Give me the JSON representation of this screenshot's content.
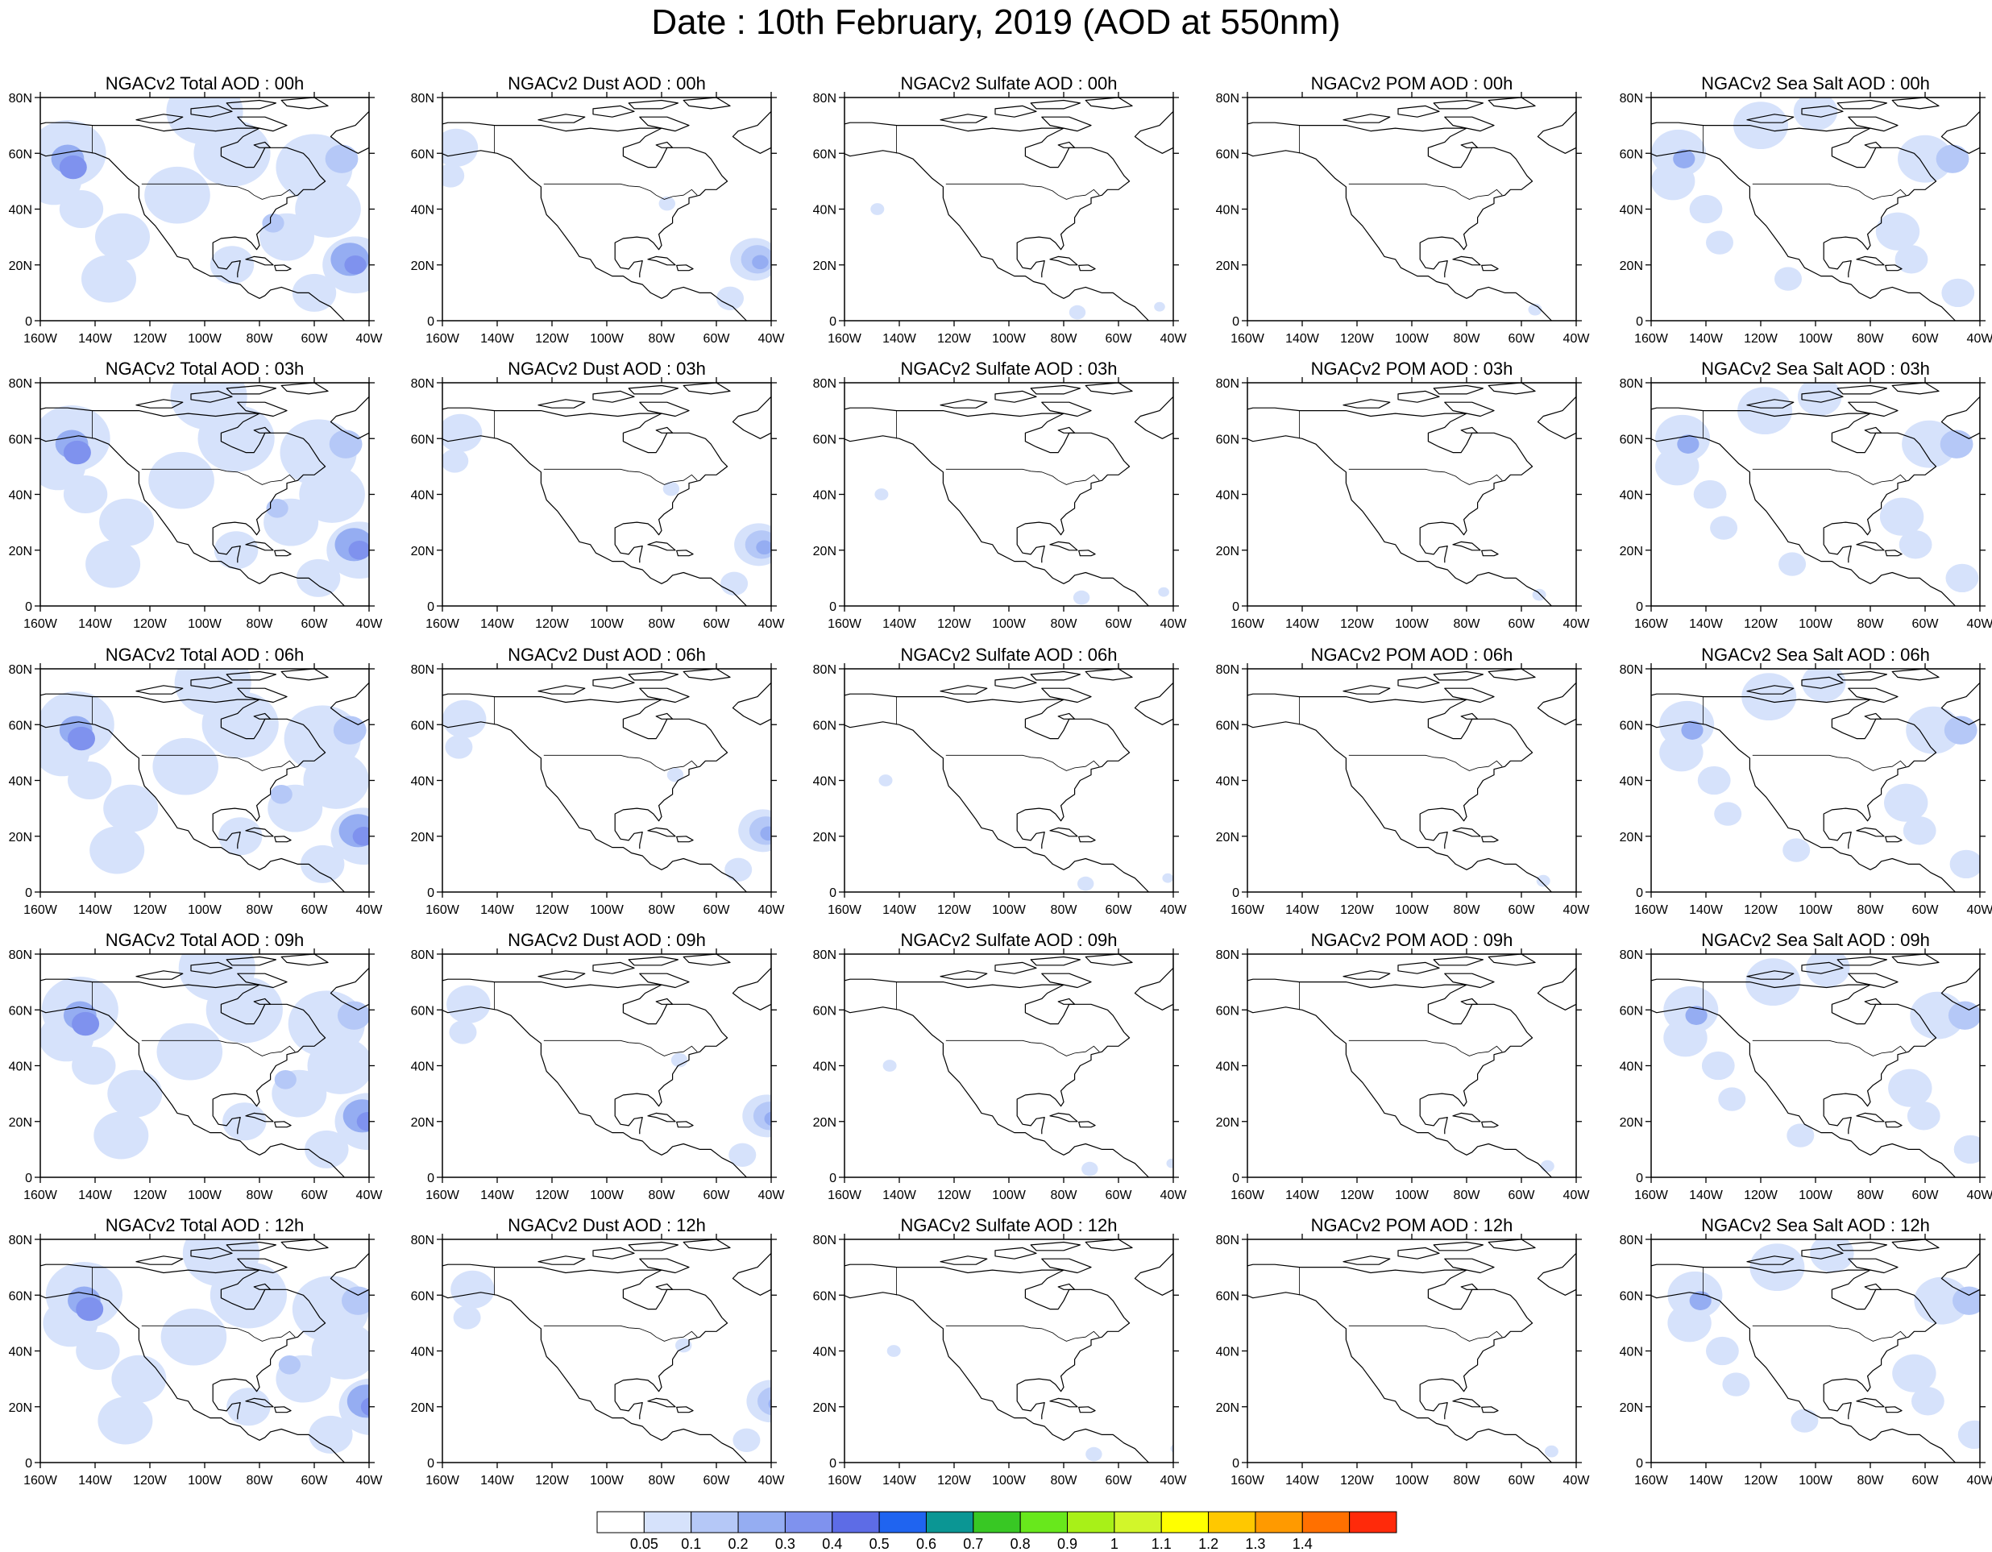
{
  "title": "Date : 10th February, 2019 (AOD at 550nm)",
  "map": {
    "lon_ticks": [
      "160W",
      "140W",
      "120W",
      "100W",
      "80W",
      "60W",
      "40W"
    ],
    "lat_ticks": [
      "80N",
      "60N",
      "40N",
      "20N",
      "0"
    ],
    "lon_range": [
      -160,
      -40
    ],
    "lat_range": [
      0,
      80
    ]
  },
  "colorbar": {
    "labels": [
      "0.05",
      "0.1",
      "0.2",
      "0.3",
      "0.4",
      "0.5",
      "0.6",
      "0.7",
      "0.8",
      "0.9",
      "1",
      "1.1",
      "1.2",
      "1.3",
      "1.4"
    ],
    "colors": [
      "#ffffff",
      "#d6e2fb",
      "#b5c8f7",
      "#95adf2",
      "#7f92ee",
      "#5d6ce6",
      "#1f64f0",
      "#0b9694",
      "#38c824",
      "#68e81c",
      "#a8f018",
      "#d2f62a",
      "#ffff00",
      "#ffc800",
      "#ff9a00",
      "#ff7000",
      "#ff2a0a"
    ]
  },
  "row_hours": [
    "00h",
    "03h",
    "06h",
    "09h",
    "12h"
  ],
  "columns": [
    "Total",
    "Dust",
    "Sulfate",
    "POM",
    "Sea Salt"
  ],
  "panel_titles": [
    [
      "NGACv2 Total AOD : 00h",
      "NGACv2 Dust AOD : 00h",
      "NGACv2 Sulfate AOD : 00h",
      "NGACv2 POM AOD : 00h",
      "NGACv2 Sea Salt AOD : 00h"
    ],
    [
      "NGACv2 Total AOD : 03h",
      "NGACv2 Dust AOD : 03h",
      "NGACv2 Sulfate AOD : 03h",
      "NGACv2 POM AOD : 03h",
      "NGACv2 Sea Salt AOD : 03h"
    ],
    [
      "NGACv2 Total AOD : 06h",
      "NGACv2 Dust AOD : 06h",
      "NGACv2 Sulfate AOD : 06h",
      "NGACv2 POM AOD : 06h",
      "NGACv2 Sea Salt AOD : 06h"
    ],
    [
      "NGACv2 Total AOD : 09h",
      "NGACv2 Dust AOD : 09h",
      "NGACv2 Sulfate AOD : 09h",
      "NGACv2 POM AOD : 09h",
      "NGACv2 Sea Salt  AOD : 09h"
    ],
    [
      "NGACv2 Total AOD  : 12h",
      "NGACv2 Dust AOD : 12h",
      "NGACv2 Sulfate AOD : 12h",
      "NGACv2 POM  AOD : 12h",
      "NGACv2 Sea Salt  AOD : 12h"
    ]
  ]
}
